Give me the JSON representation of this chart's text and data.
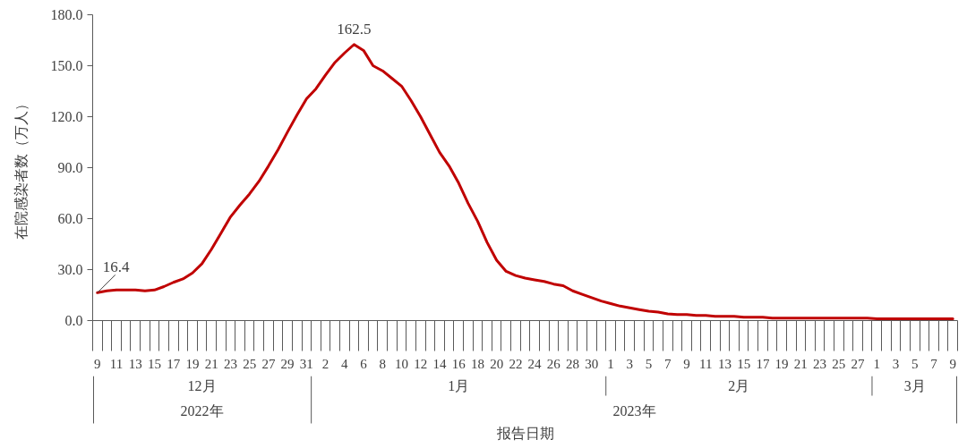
{
  "chart_data": {
    "type": "line",
    "xlabel": "报告日期",
    "ylabel": "在院感染者数（万人）",
    "color": "#c00000",
    "x": [
      "2022-12-09",
      "2022-12-10",
      "2022-12-11",
      "2022-12-12",
      "2022-12-13",
      "2022-12-14",
      "2022-12-15",
      "2022-12-16",
      "2022-12-17",
      "2022-12-18",
      "2022-12-19",
      "2022-12-20",
      "2022-12-21",
      "2022-12-22",
      "2022-12-23",
      "2022-12-24",
      "2022-12-25",
      "2022-12-26",
      "2022-12-27",
      "2022-12-28",
      "2022-12-29",
      "2022-12-30",
      "2022-12-31",
      "2023-01-01",
      "2023-01-02",
      "2023-01-03",
      "2023-01-04",
      "2023-01-05",
      "2023-01-06",
      "2023-01-07",
      "2023-01-08",
      "2023-01-09",
      "2023-01-10",
      "2023-01-11",
      "2023-01-12",
      "2023-01-13",
      "2023-01-14",
      "2023-01-15",
      "2023-01-16",
      "2023-01-17",
      "2023-01-18",
      "2023-01-19",
      "2023-01-20",
      "2023-01-21",
      "2023-01-22",
      "2023-01-23",
      "2023-01-24",
      "2023-01-25",
      "2023-01-26",
      "2023-01-27",
      "2023-01-28",
      "2023-01-29",
      "2023-01-30",
      "2023-01-31",
      "2023-02-01",
      "2023-02-02",
      "2023-02-03",
      "2023-02-04",
      "2023-02-05",
      "2023-02-06",
      "2023-02-07",
      "2023-02-08",
      "2023-02-09",
      "2023-02-10",
      "2023-02-11",
      "2023-02-12",
      "2023-02-13",
      "2023-02-14",
      "2023-02-15",
      "2023-02-16",
      "2023-02-17",
      "2023-02-18",
      "2023-02-19",
      "2023-02-20",
      "2023-02-21",
      "2023-02-22",
      "2023-02-23",
      "2023-02-24",
      "2023-02-25",
      "2023-02-26",
      "2023-02-27",
      "2023-02-28",
      "2023-03-01",
      "2023-03-02",
      "2023-03-03",
      "2023-03-04",
      "2023-03-05",
      "2023-03-06",
      "2023-03-07",
      "2023-03-08",
      "2023-03-09"
    ],
    "values": [
      16.4,
      17.5,
      18,
      18,
      18,
      17.5,
      18,
      20,
      22.5,
      24.5,
      28,
      33.5,
      42,
      51.5,
      61,
      68,
      74.5,
      82,
      91,
      100.5,
      111,
      121,
      130.5,
      136.5,
      144.5,
      152,
      157.5,
      162.5,
      159,
      150,
      147,
      142.5,
      138,
      129.5,
      120,
      109.5,
      99,
      91,
      81,
      69,
      58.5,
      46,
      35.5,
      29,
      26.5,
      25,
      24,
      23,
      21.5,
      20.5,
      17.5,
      15.5,
      13.5,
      11.5,
      10,
      8.5,
      7.5,
      6.5,
      5.5,
      5,
      4,
      3.5,
      3.5,
      3,
      3,
      2.5,
      2.5,
      2.5,
      2,
      2,
      2,
      1.5,
      1.5,
      1.5,
      1.5,
      1.5,
      1.5,
      1.5,
      1.5,
      1.5,
      1.5,
      1.5,
      1,
      1,
      1,
      1,
      1,
      1,
      1,
      1,
      1
    ],
    "value_labels": [
      "16.4",
      null,
      null,
      null,
      null,
      null,
      null,
      null,
      null,
      null,
      null,
      null,
      null,
      null,
      null,
      null,
      null,
      null,
      null,
      null,
      null,
      null,
      null,
      null,
      null,
      null,
      null,
      "162.5",
      null,
      null,
      null,
      null,
      null,
      null,
      null,
      null,
      null,
      null,
      null,
      null,
      null,
      null,
      null,
      null,
      null,
      null,
      null,
      null,
      null,
      null,
      null,
      null,
      null,
      null,
      null,
      null,
      null,
      null,
      null,
      null,
      null,
      null,
      null,
      null,
      null,
      null,
      null,
      null,
      null,
      null,
      null,
      null,
      null,
      null,
      null,
      null,
      null,
      null,
      null,
      null,
      null,
      null,
      null,
      null,
      null,
      null,
      null,
      null,
      null,
      null,
      null
    ],
    "xlim": [
      "2022-12-08T12:00",
      "2023-03-09T12:00"
    ],
    "xticks": [
      {
        "value": "2022-12-09",
        "label": "9"
      },
      {
        "value": "2022-12-11",
        "label": "11"
      },
      {
        "value": "2022-12-13",
        "label": "13"
      },
      {
        "value": "2022-12-15",
        "label": "15"
      },
      {
        "value": "2022-12-17",
        "label": "17"
      },
      {
        "value": "2022-12-19",
        "label": "19"
      },
      {
        "value": "2022-12-21",
        "label": "21"
      },
      {
        "value": "2022-12-23",
        "label": "23"
      },
      {
        "value": "2022-12-25",
        "label": "25"
      },
      {
        "value": "2022-12-27",
        "label": "27"
      },
      {
        "value": "2022-12-29",
        "label": "29"
      },
      {
        "value": "2022-12-31",
        "label": "31"
      },
      {
        "value": "2023-01-02",
        "label": "2"
      },
      {
        "value": "2023-01-04",
        "label": "4"
      },
      {
        "value": "2023-01-06",
        "label": "6"
      },
      {
        "value": "2023-01-08",
        "label": "8"
      },
      {
        "value": "2023-01-10",
        "label": "10"
      },
      {
        "value": "2023-01-12",
        "label": "12"
      },
      {
        "value": "2023-01-14",
        "label": "14"
      },
      {
        "value": "2023-01-16",
        "label": "16"
      },
      {
        "value": "2023-01-18",
        "label": "18"
      },
      {
        "value": "2023-01-20",
        "label": "20"
      },
      {
        "value": "2023-01-22",
        "label": "22"
      },
      {
        "value": "2023-01-24",
        "label": "24"
      },
      {
        "value": "2023-01-26",
        "label": "26"
      },
      {
        "value": "2023-01-28",
        "label": "28"
      },
      {
        "value": "2023-01-30",
        "label": "30"
      },
      {
        "value": "2023-02-01",
        "label": "1"
      },
      {
        "value": "2023-02-03",
        "label": "3"
      },
      {
        "value": "2023-02-05",
        "label": "5"
      },
      {
        "value": "2023-02-07",
        "label": "7"
      },
      {
        "value": "2023-02-09",
        "label": "9"
      },
      {
        "value": "2023-02-11",
        "label": "11"
      },
      {
        "value": "2023-02-13",
        "label": "13"
      },
      {
        "value": "2023-02-15",
        "label": "15"
      },
      {
        "value": "2023-02-17",
        "label": "17"
      },
      {
        "value": "2023-02-19",
        "label": "19"
      },
      {
        "value": "2023-02-21",
        "label": "21"
      },
      {
        "value": "2023-02-23",
        "label": "23"
      },
      {
        "value": "2023-02-25",
        "label": "25"
      },
      {
        "value": "2023-02-27",
        "label": "27"
      },
      {
        "value": "2023-03-01",
        "label": "1"
      },
      {
        "value": "2023-03-03",
        "label": "3"
      },
      {
        "value": "2023-03-05",
        "label": "5"
      },
      {
        "value": "2023-03-07",
        "label": "7"
      },
      {
        "value": "2023-03-09",
        "label": "9"
      }
    ],
    "ylim": [
      0,
      180
    ],
    "yticks": [
      {
        "value": 0,
        "label": "0.0"
      },
      {
        "value": 30,
        "label": "30.0"
      },
      {
        "value": 60,
        "label": "60.0"
      },
      {
        "value": 90,
        "label": "90.0"
      },
      {
        "value": 120,
        "label": "120.0"
      },
      {
        "value": 150,
        "label": "150.0"
      },
      {
        "value": 180,
        "label": "180.0"
      }
    ],
    "annotations": [
      "12月",
      "1月",
      "2月",
      "3月",
      "2022年",
      "2023年"
    ]
  }
}
